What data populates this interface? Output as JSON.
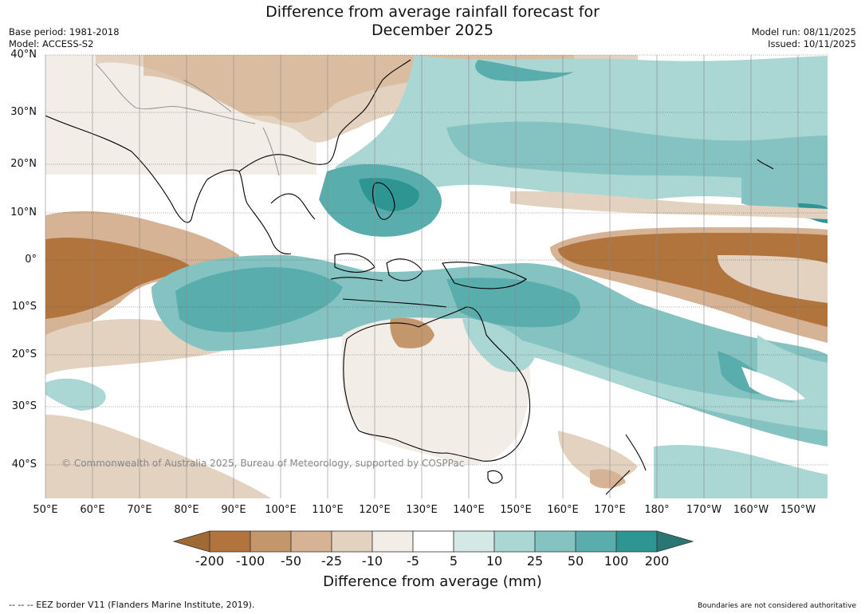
{
  "title_line1": "Difference from average rainfall forecast for",
  "title_line2": "December 2025",
  "base_period": "Base period: 1981-2018",
  "model": "Model: ACCESS-S2",
  "model_run": "Model run: 08/11/2025",
  "issued": "Issued: 10/11/2025",
  "copyright": "© Commonwealth of Australia 2025, Bureau of Meteorology, supported by COSPPac",
  "lat_labels": [
    "40°N",
    "30°N",
    "20°N",
    "10°N",
    "0°",
    "10°S",
    "20°S",
    "30°S",
    "40°S"
  ],
  "lon_labels": [
    "50°E",
    "60°E",
    "70°E",
    "80°E",
    "90°E",
    "100°E",
    "110°E",
    "120°E",
    "130°E",
    "140°E",
    "150°E",
    "160°E",
    "170°E",
    "180°",
    "170°W",
    "160°W",
    "150°W"
  ],
  "colorbar": {
    "ticks": [
      "-200",
      "-100",
      "-50",
      "-25",
      "-10",
      "-5",
      "5",
      "10",
      "25",
      "50",
      "100",
      "200"
    ],
    "colors": [
      "#9f6a34",
      "#b0743c",
      "#c4966b",
      "#d6b394",
      "#e3d2bf",
      "#f2ede6",
      "#ffffff",
      "#d4e8e6",
      "#aad6d4",
      "#84c3c1",
      "#5aadad",
      "#2e9593",
      "#2a7675"
    ],
    "title": "Difference from average (mm)"
  },
  "footer_left": "--  --  -- EEZ border V11 (Flanders Marine Institute, 2019).",
  "footer_right": "Boundaries are not considered authoritative"
}
